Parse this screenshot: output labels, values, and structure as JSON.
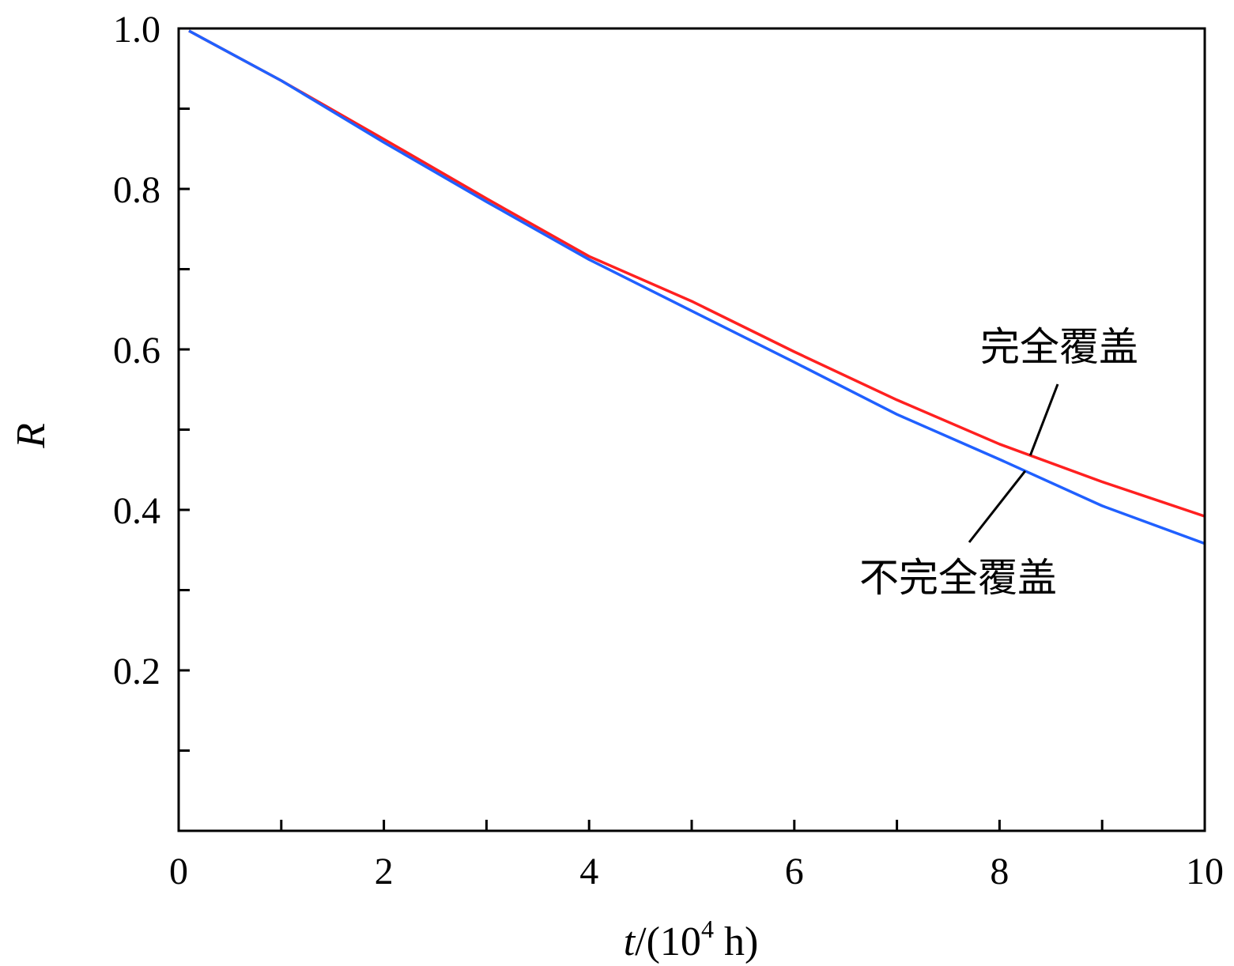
{
  "chart_data": {
    "type": "line",
    "xlabel": {
      "var": "t",
      "rest": "/(10",
      "sup": "4",
      "unit": " h)"
    },
    "ylabel": "R",
    "xlim": [
      0,
      10
    ],
    "ylim": [
      0,
      1.0
    ],
    "x_major_ticks": [
      0,
      2,
      4,
      6,
      8,
      10
    ],
    "x_minor_ticks": [
      1,
      3,
      5,
      7,
      9
    ],
    "x_tick_labels": [
      "0",
      "2",
      "4",
      "6",
      "8",
      "10"
    ],
    "y_major_ticks": [
      0.2,
      0.4,
      0.6,
      0.8,
      1.0
    ],
    "y_minor_ticks": [
      0.1,
      0.3,
      0.5,
      0.7,
      0.9
    ],
    "y_tick_labels": [
      "0.2",
      "0.4",
      "0.6",
      "0.8",
      "1.0"
    ],
    "grid": false,
    "series": [
      {
        "name": "完全覆盖",
        "color": "#ff2020",
        "x": [
          0.1,
          1,
          2,
          3,
          4,
          5,
          6,
          7,
          8,
          9,
          10
        ],
        "y": [
          0.997,
          0.935,
          0.862,
          0.788,
          0.716,
          0.66,
          0.597,
          0.537,
          0.482,
          0.435,
          0.392
        ]
      },
      {
        "name": "不完全覆盖",
        "color": "#2060ff",
        "x": [
          0.1,
          1,
          2,
          3,
          4,
          5,
          6,
          7,
          8,
          9,
          10
        ],
        "y": [
          0.997,
          0.935,
          0.858,
          0.784,
          0.712,
          0.648,
          0.584,
          0.519,
          0.463,
          0.405,
          0.358
        ]
      }
    ],
    "annotations": [
      {
        "text": "完全覆盖",
        "series": 0,
        "at_x": 8.3
      },
      {
        "text": "不完全覆盖",
        "series": 1,
        "at_x": 8.25
      }
    ]
  }
}
